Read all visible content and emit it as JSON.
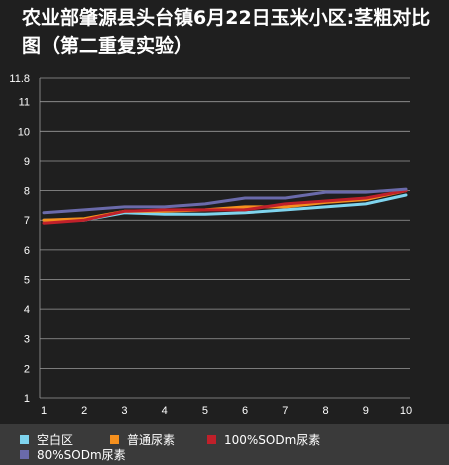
{
  "chart_data": {
    "type": "line",
    "title": "农业部肇源县头台镇6月22日玉米小区:茎粗对比图（第二重复实验）",
    "x": [
      1,
      2,
      3,
      4,
      5,
      6,
      7,
      8,
      9,
      10
    ],
    "x_tick_labels": [
      "1",
      "2",
      "3",
      "4",
      "5",
      "6",
      "7",
      "8",
      "9",
      "10"
    ],
    "y_tick_labels": [
      "1",
      "2",
      "3",
      "4",
      "5",
      "6",
      "7",
      "8",
      "9",
      "10",
      "11",
      "11.8"
    ],
    "ylim": [
      1,
      11.8
    ],
    "grid": true,
    "legend_position": "bottom",
    "series": [
      {
        "name": "空白区",
        "color": "#7fd4ee",
        "values": [
          7.0,
          7.0,
          7.25,
          7.2,
          7.2,
          7.25,
          7.35,
          7.45,
          7.55,
          7.85
        ]
      },
      {
        "name": "普通尿素",
        "color": "#f5901e",
        "values": [
          7.0,
          7.05,
          7.3,
          7.3,
          7.35,
          7.45,
          7.45,
          7.6,
          7.7,
          8.0
        ]
      },
      {
        "name": "100%SODm尿素",
        "color": "#c0202a",
        "values": [
          6.9,
          7.0,
          7.3,
          7.35,
          7.35,
          7.35,
          7.55,
          7.65,
          7.75,
          8.0
        ]
      },
      {
        "name": "80%SODm尿素",
        "color": "#6a6aaa",
        "values": [
          7.25,
          7.35,
          7.45,
          7.45,
          7.55,
          7.75,
          7.75,
          7.95,
          7.95,
          8.05
        ]
      }
    ]
  }
}
